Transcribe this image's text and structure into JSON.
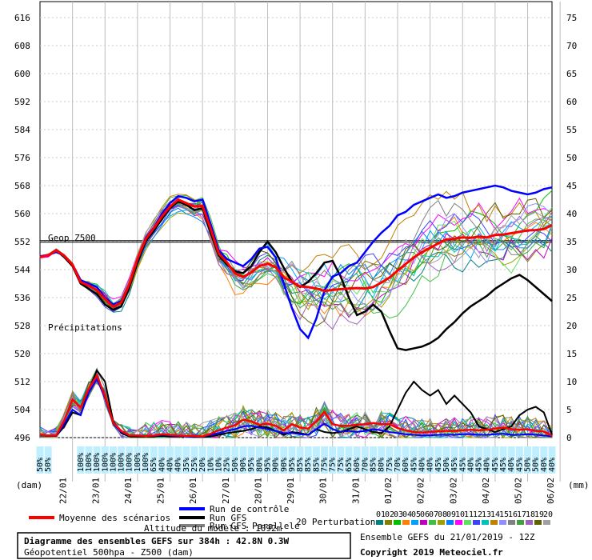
{
  "chart_data": {
    "type": "line",
    "title": "Diagramme des ensembles GEFS sur 384h : 42.8N 0.3W",
    "subtitle": "Géopotentiel 500hpa - Z500 (dam)",
    "left_axis": {
      "unit": "(dam)",
      "ticks": [
        "616",
        "608",
        "600",
        "592",
        "584",
        "576",
        "568",
        "560",
        "552",
        "544",
        "536",
        "528",
        "520",
        "512",
        "504",
        "496"
      ],
      "range": [
        496,
        616
      ]
    },
    "right_axis": {
      "unit": "(mm)",
      "ticks": [
        "75",
        "70",
        "65",
        "60",
        "55",
        "50",
        "45",
        "40",
        "35",
        "30",
        "25",
        "20",
        "15",
        "10",
        "5",
        "0"
      ],
      "range": [
        0,
        75
      ]
    },
    "x_axis": {
      "tick_labels": [
        "22/01",
        "23/01",
        "24/01",
        "25/01",
        "26/01",
        "27/01",
        "28/01",
        "29/01",
        "30/01",
        "31/01",
        "01/02",
        "02/02",
        "03/02",
        "04/02",
        "05/02",
        "06/02"
      ],
      "steps": 64,
      "step_hours": 6
    },
    "reference_line": {
      "label": "Geop Z500",
      "value": 552.3
    },
    "precip_label": "Précipitations",
    "probabilities": [
      "50%",
      "50%",
      "",
      "",
      "",
      "100%",
      "100%",
      "100%",
      "100%",
      "100%",
      "100%",
      "100%",
      "100%",
      "100%",
      "65%",
      "40%",
      "40%",
      "40%",
      "35%",
      "25%",
      "20%",
      "10%",
      "10%",
      "25%",
      "50%",
      "90%",
      "95%",
      "80%",
      "95%",
      "90%",
      "90%",
      "95%",
      "85%",
      "85%",
      "85%",
      "75%",
      "75%",
      "75%",
      "65%",
      "60%",
      "70%",
      "85%",
      "80%",
      "75%",
      "70%",
      "60%",
      "45%",
      "40%",
      "40%",
      "45%",
      "50%",
      "45%",
      "45%",
      "40%",
      "45%",
      "40%",
      "45%",
      "45%",
      "40%",
      "45%",
      "50%",
      "50%",
      "40%",
      "40%"
    ],
    "series": [
      {
        "name": "Moyenne des scénarios",
        "color": "#ff0000",
        "z500": [
          547.6,
          548.1,
          549.5,
          547.9,
          545.4,
          540.4,
          539.4,
          538.1,
          535.6,
          533.4,
          534.6,
          539.9,
          547.1,
          552.7,
          555.8,
          559.2,
          562.0,
          564.0,
          563.0,
          562.0,
          562.2,
          555.6,
          548.6,
          546.1,
          542.9,
          541.9,
          543.2,
          545.0,
          545.7,
          544.7,
          541.8,
          540.5,
          539.2,
          539.0,
          538.6,
          537.9,
          538.2,
          538.4,
          538.6,
          538.7,
          538.6,
          539.0,
          540.3,
          541.7,
          543.7,
          545.6,
          547.5,
          549.0,
          550.2,
          551.5,
          552.6,
          552.8,
          553.2,
          553.1,
          553.4,
          553.2,
          553.9,
          554.0,
          554.4,
          554.8,
          555.2,
          555.3,
          555.6,
          556.7
        ],
        "precip": [
          0.5,
          0.4,
          0.4,
          3.1,
          6.8,
          5.4,
          8.7,
          11.1,
          7.4,
          2.7,
          1.2,
          0.4,
          0.4,
          0.3,
          0.4,
          0.6,
          0.5,
          0.4,
          0.3,
          0.3,
          0.2,
          0.7,
          1.3,
          1.8,
          2.2,
          3.2,
          2.9,
          2.3,
          2.5,
          2.1,
          1.3,
          2.4,
          1.8,
          1.6,
          2.9,
          4.6,
          2.4,
          2.1,
          2.1,
          2.3,
          2.4,
          2.6,
          2.4,
          2.4,
          1.7,
          1.3,
          1.0,
          0.9,
          1.0,
          1.1,
          1.2,
          1.2,
          1.3,
          1.4,
          1.3,
          1.4,
          1.6,
          1.8,
          1.5,
          1.4,
          1.5,
          1.2,
          1.1,
          0.3
        ]
      },
      {
        "name": "Run de contrôle",
        "color": "#0000ff",
        "z500": [
          547.8,
          548.2,
          549.0,
          548.0,
          545.5,
          541.0,
          540.0,
          539.0,
          536.0,
          534.0,
          535.0,
          540.0,
          547.0,
          553.0,
          556.0,
          560.0,
          563.0,
          565.0,
          564.5,
          563.5,
          564.0,
          557.0,
          549.5,
          547.0,
          546.0,
          545.0,
          547.0,
          550.0,
          550.5,
          547.5,
          540.0,
          533.0,
          527.0,
          524.5,
          530.0,
          538.0,
          542.0,
          543.0,
          545.0,
          546.0,
          549.0,
          552.0,
          554.5,
          556.5,
          559.5,
          560.5,
          562.5,
          563.5,
          564.5,
          565.5,
          564.5,
          565.0,
          566.0,
          566.5,
          567.0,
          567.5,
          568.0,
          567.5,
          566.5,
          566.0,
          565.5,
          566.0,
          567.0,
          567.5
        ],
        "precip": [
          0.5,
          0.4,
          0.3,
          2.5,
          5.0,
          4.0,
          8.0,
          10.5,
          7.0,
          2.5,
          1.0,
          0.4,
          0.3,
          0.3,
          0.3,
          0.5,
          0.4,
          0.3,
          0.2,
          0.2,
          0.2,
          0.5,
          0.8,
          1.2,
          1.5,
          2.0,
          2.1,
          1.8,
          1.5,
          1.2,
          0.8,
          0.8,
          0.6,
          0.5,
          1.5,
          2.5,
          1.5,
          1.0,
          1.2,
          1.0,
          1.2,
          1.5,
          1.3,
          1.0,
          0.8,
          0.6,
          0.5,
          0.4,
          0.4,
          0.5,
          0.5,
          0.5,
          0.6,
          0.6,
          0.5,
          0.5,
          0.6,
          0.7,
          0.5,
          0.5,
          0.6,
          0.5,
          0.4,
          0.2
        ]
      },
      {
        "name": "Run GFS",
        "color": "#000000",
        "z500": [
          547.8,
          548.0,
          549.5,
          547.5,
          545.0,
          540.0,
          538.5,
          537.0,
          534.0,
          532.5,
          533.5,
          539.0,
          546.0,
          552.0,
          555.0,
          558.5,
          561.5,
          563.5,
          562.5,
          561.0,
          561.5,
          554.5,
          548.0,
          545.5,
          543.5,
          543.0,
          545.0,
          549.0,
          552.0,
          549.0,
          544.5,
          540.5,
          539.0,
          540.5,
          543.0,
          546.0,
          546.5,
          542.0,
          536.0,
          531.0,
          532.0,
          534.0,
          532.0,
          526.5,
          521.5,
          521.0,
          521.5,
          522.0,
          523.0,
          524.5,
          527.0,
          529.0,
          531.5,
          533.5,
          535.0,
          536.5,
          538.5,
          540.0,
          541.5,
          542.5,
          541.0,
          539.0,
          537.0,
          535.0
        ],
        "precip": [
          0.4,
          0.3,
          0.3,
          2.0,
          4.5,
          4.0,
          8.5,
          12.0,
          10.0,
          3.0,
          0.8,
          0.2,
          0.2,
          0.2,
          0.2,
          0.3,
          0.2,
          0.2,
          0.2,
          0.1,
          0.1,
          0.2,
          0.5,
          0.8,
          1.0,
          1.2,
          1.5,
          2.0,
          1.8,
          1.2,
          0.5,
          1.0,
          0.8,
          0.5,
          1.5,
          1.0,
          0.8,
          1.0,
          1.5,
          2.0,
          1.5,
          1.0,
          0.8,
          2.0,
          5.0,
          8.0,
          10.0,
          8.5,
          7.5,
          8.5,
          6.0,
          7.5,
          6.0,
          4.5,
          2.0,
          1.5,
          1.0,
          1.5,
          2.0,
          4.0,
          5.0,
          5.5,
          4.5,
          0.5
        ]
      },
      {
        "name": "Run GFS Parallele",
        "color": "#808080",
        "z500": [],
        "precip": []
      }
    ],
    "perturbations": {
      "label": "20 Perturbations",
      "members": [
        "01",
        "02",
        "03",
        "04",
        "05",
        "06",
        "07",
        "08",
        "09",
        "10",
        "11",
        "12",
        "13",
        "14",
        "15",
        "16",
        "17",
        "18",
        "19",
        "20"
      ],
      "colors": [
        "#008080",
        "#808000",
        "#00c000",
        "#ff8000",
        "#00a0ff",
        "#c000c0",
        "#40c040",
        "#a0a000",
        "#0080ff",
        "#ff00ff",
        "#60e060",
        "#4040ff",
        "#00c0c0",
        "#c08000",
        "#9090ff",
        "#808080",
        "#40a040",
        "#a060c0",
        "#606000",
        "#a0a0a0"
      ]
    }
  },
  "legend": {
    "mean_label": "Moyenne des scénarios",
    "control_label": "Run de contrôle",
    "gfs_label": "Run GFS",
    "gfs_par_label": "Run GFS Parallele",
    "altitude_label": "Altitude du modèle : 1092m"
  },
  "footer": {
    "title": "Diagramme des ensembles GEFS sur 384h : 42.8N 0.3W",
    "subtitle": "Géopotentiel 500hpa - Z500 (dam)",
    "run_info": "Ensemble GEFS du 21/01/2019 - 12Z",
    "copyright": "Copyright 2019 Meteociel.fr"
  }
}
